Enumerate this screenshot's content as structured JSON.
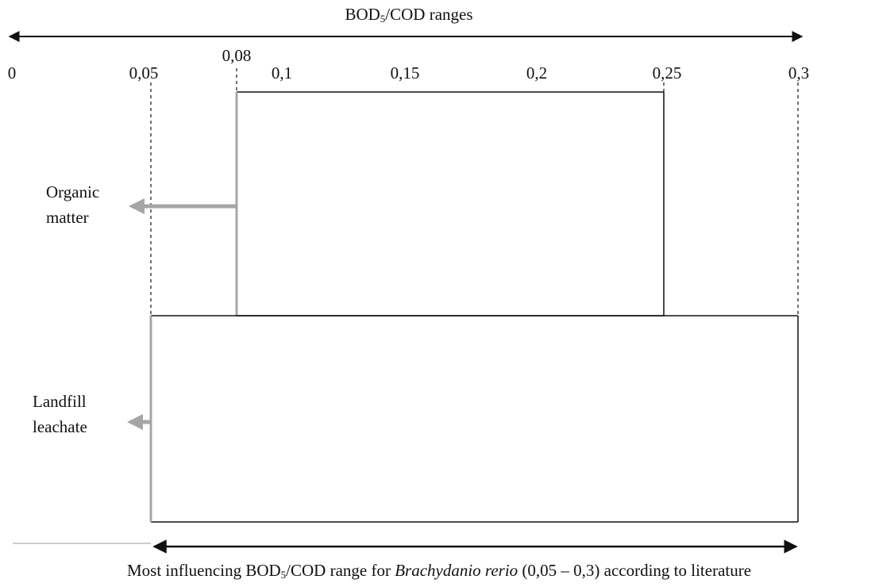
{
  "title": {
    "pre": "BOD",
    "sub": "5",
    "post": "/COD ranges"
  },
  "axis": {
    "min": 0,
    "max": 0.3,
    "ticks": [
      {
        "value": 0,
        "label": "0"
      },
      {
        "value": 0.05,
        "label": "0,05"
      },
      {
        "value": 0.1,
        "label": "0,1"
      },
      {
        "value": 0.15,
        "label": "0,15"
      },
      {
        "value": 0.2,
        "label": "0,2"
      },
      {
        "value": 0.25,
        "label": "0,25"
      },
      {
        "value": 0.3,
        "label": "0,3"
      }
    ],
    "extra_label": {
      "value": 0.08,
      "label": "0,08"
    }
  },
  "ranges": [
    {
      "name_line1": "Organic",
      "name_line2": "matter",
      "from": 0.08,
      "to": 0.25
    },
    {
      "name_line1": "Landfill",
      "name_line2": "leachate",
      "from": 0.05,
      "to": 0.3
    }
  ],
  "caption": {
    "pre": "Most influencing BOD",
    "sub": "5",
    "mid": "/COD range for ",
    "species": "Brachydanio rerio",
    "range_text": " (0,05 – 0,3) according to literature",
    "from": 0.05,
    "to": 0.3
  },
  "colors": {
    "line": "#111111",
    "accent": "#a6a6a6"
  }
}
